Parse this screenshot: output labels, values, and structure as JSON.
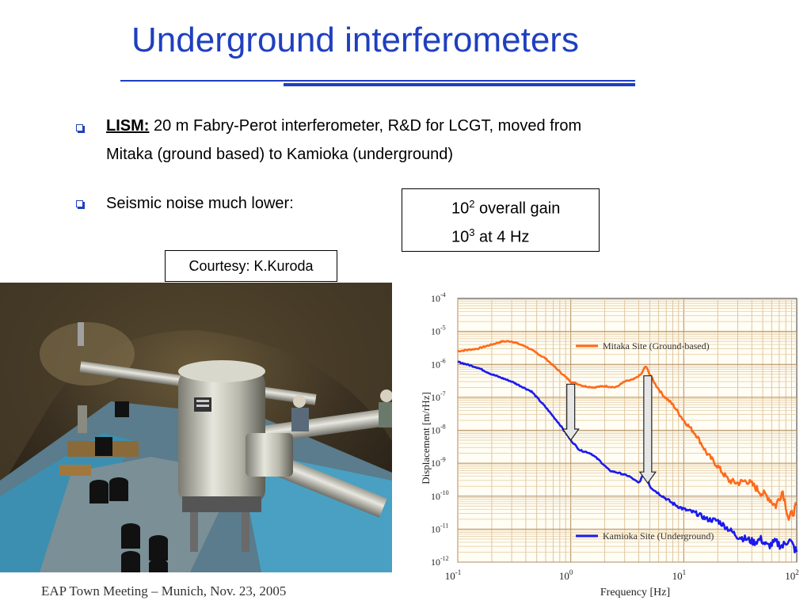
{
  "slide": {
    "title": "Underground interferometers",
    "bullets": [
      {
        "lead": "LISM:",
        "text_line1": " 20 m Fabry-Perot  interferometer, R&D for LCGT, moved from",
        "text_line2": "Mitaka (ground based) to Kamioka (underground)"
      },
      {
        "text": "Seismic noise much lower:"
      }
    ],
    "gain": {
      "line1_base": "10",
      "line1_exp": "2",
      "line1_text": " overall gain",
      "line2_base": "10",
      "line2_exp": "3",
      "line2_text": " at 4 Hz"
    },
    "credit": "Courtesy: K.Kuroda",
    "footer": "EAP Town Meeting – Munich, Nov. 23, 2005",
    "accent_color": "#1f3fbf"
  },
  "chart_data": {
    "type": "line",
    "x_scale": "log",
    "y_scale": "log",
    "xlabel": "Frequency [Hz]",
    "ylabel": "Displacement [m/rHz]",
    "x_ticks": [
      {
        "base": "10",
        "exp": "-1"
      },
      {
        "base": "10",
        "exp": "0"
      },
      {
        "base": "10",
        "exp": "1"
      },
      {
        "base": "10",
        "exp": "2"
      }
    ],
    "y_ticks": [
      {
        "base": "10",
        "exp": "-4"
      },
      {
        "base": "10",
        "exp": "-5"
      },
      {
        "base": "10",
        "exp": "-6"
      },
      {
        "base": "10",
        "exp": "-7"
      },
      {
        "base": "10",
        "exp": "-8"
      },
      {
        "base": "10",
        "exp": "-9"
      },
      {
        "base": "10",
        "exp": "-10"
      },
      {
        "base": "10",
        "exp": "-11"
      },
      {
        "base": "10",
        "exp": "-12"
      }
    ],
    "xlim": [
      0.1,
      100
    ],
    "ylim": [
      1e-12,
      0.0001
    ],
    "grid": true,
    "series": [
      {
        "name": "Mitaka Site (Ground-based)",
        "color": "#ff6a1a",
        "x": [
          0.1,
          0.15,
          0.2,
          0.25,
          0.3,
          0.4,
          0.6,
          0.8,
          1.0,
          1.3,
          1.6,
          2.0,
          2.5,
          3.0,
          3.6,
          4.2,
          4.6,
          5.0,
          5.6,
          6.5,
          8.0,
          10,
          13,
          16,
          20,
          25,
          30,
          36,
          42,
          48,
          55,
          65,
          75,
          85,
          100
        ],
        "y": [
          2.5e-06,
          3e-06,
          4e-06,
          5e-06,
          5e-06,
          3.5e-06,
          1.5e-06,
          6e-07,
          3e-07,
          2.2e-07,
          2e-07,
          2.2e-07,
          2e-07,
          3e-07,
          3.5e-07,
          5e-07,
          9e-07,
          5e-07,
          2.5e-07,
          1.2e-07,
          6e-08,
          2e-08,
          7e-09,
          2e-09,
          8e-10,
          3e-10,
          2.5e-10,
          3e-10,
          2e-10,
          1.3e-10,
          1e-10,
          5e-11,
          1.5e-10,
          2e-11,
          5e-11
        ]
      },
      {
        "name": "Kamioka Site (Underground)",
        "color": "#1a1aee",
        "x": [
          0.1,
          0.15,
          0.2,
          0.3,
          0.45,
          0.6,
          0.8,
          1.0,
          1.2,
          1.5,
          1.8,
          2.2,
          2.7,
          3.3,
          4.0,
          4.6,
          5.0,
          5.5,
          6.5,
          8.0,
          10,
          13,
          16,
          20,
          25,
          30,
          36,
          42,
          48,
          55,
          65,
          75,
          85,
          100
        ],
        "y": [
          1.2e-06,
          8e-07,
          5e-07,
          3e-07,
          1.5e-07,
          5e-08,
          1.5e-08,
          5e-09,
          2.5e-09,
          2e-09,
          1.2e-09,
          6e-10,
          5e-10,
          4e-10,
          2.5e-10,
          6e-10,
          2e-10,
          1.5e-10,
          1e-10,
          6e-11,
          4e-11,
          3e-11,
          2e-11,
          1.8e-11,
          1e-11,
          6e-12,
          5e-12,
          4e-12,
          5e-12,
          3e-12,
          4e-12,
          3e-12,
          5e-12,
          2e-12
        ]
      }
    ],
    "annotations": [
      {
        "type": "arrow",
        "x": 1.0,
        "y_from": 2.5e-07,
        "y_to": 5e-09
      },
      {
        "type": "arrow",
        "x": 4.8,
        "y_from": 4.5e-07,
        "y_to": 2.5e-10
      }
    ]
  }
}
